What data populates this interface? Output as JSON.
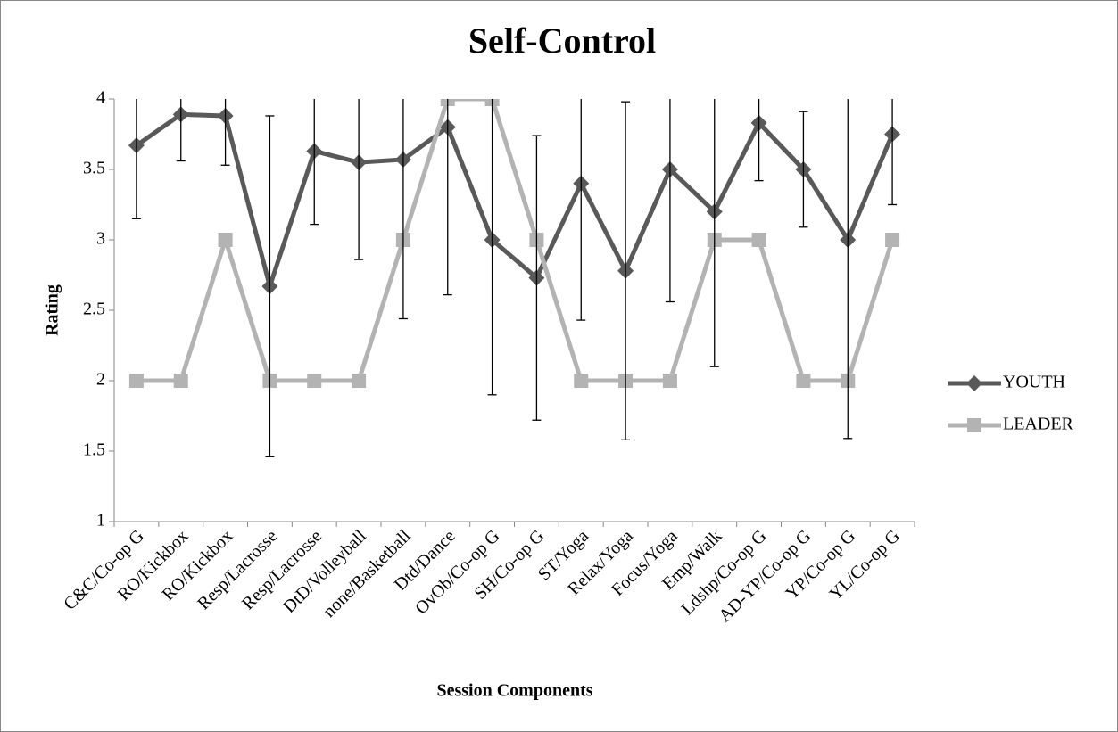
{
  "chart_data": {
    "type": "line",
    "title": "Self-Control",
    "x_label": "Session Components",
    "y_label": "Rating",
    "categories": [
      "C&C/Co-op G",
      "RO/Kickbox",
      "RO/Kickbox",
      "Resp/Lacrosse",
      "Resp/Lacrosse",
      "DtD/Volleyball",
      "none/Basketball",
      "Dtd/Dance",
      "OvOb/Co-op G",
      "SH/Co-op G",
      "ST/Yoga",
      "Relax/Yoga",
      "Focus/Yoga",
      "Emp/Walk",
      "Ldshp/Co-op G",
      "AD-YP/Co-op G",
      "YP/Co-op G",
      "YL/Co-op G"
    ],
    "series": [
      {
        "name": "YOUTH",
        "color": "#595959",
        "marker": "diamond",
        "values": [
          3.67,
          3.89,
          3.88,
          2.67,
          3.63,
          3.55,
          3.57,
          3.8,
          3.0,
          2.73,
          3.4,
          2.78,
          3.5,
          3.2,
          3.83,
          3.5,
          3.0,
          3.75
        ],
        "errors": [
          0.52,
          0.33,
          0.35,
          1.21,
          0.52,
          0.69,
          1.13,
          1.19,
          1.1,
          1.01,
          0.97,
          1.2,
          0.94,
          1.1,
          0.41,
          0.41,
          1.41,
          0.5
        ]
      },
      {
        "name": "LEADER",
        "color": "#b3b3b3",
        "marker": "square",
        "values": [
          2,
          2,
          3,
          2,
          2,
          2,
          3,
          4,
          4,
          3,
          2,
          2,
          2,
          3,
          3,
          2,
          2,
          3
        ]
      }
    ],
    "ylim": [
      1,
      4
    ],
    "yticks": [
      1,
      1.5,
      2,
      2.5,
      3,
      3.5,
      4
    ],
    "grid": false,
    "legend": "right"
  }
}
